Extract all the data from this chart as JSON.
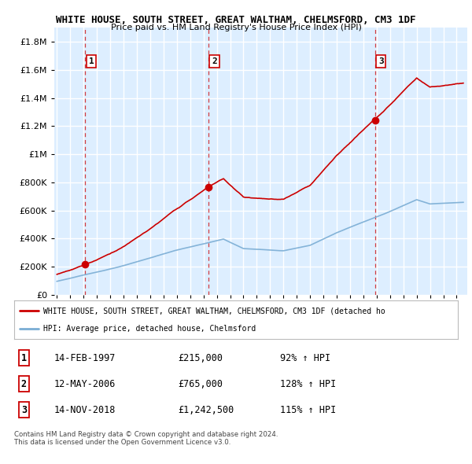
{
  "title": "WHITE HOUSE, SOUTH STREET, GREAT WALTHAM, CHELMSFORD, CM3 1DF",
  "subtitle": "Price paid vs. HM Land Registry's House Price Index (HPI)",
  "yticks": [
    0,
    200000,
    400000,
    600000,
    800000,
    1000000,
    1200000,
    1400000,
    1600000,
    1800000
  ],
  "ytick_labels": [
    "£0",
    "£200K",
    "£400K",
    "£600K",
    "£800K",
    "£1M",
    "£1.2M",
    "£1.4M",
    "£1.6M",
    "£1.8M"
  ],
  "xlim_start": 1994.8,
  "xlim_end": 2025.8,
  "ylim_bottom": 0,
  "ylim_top": 1900000,
  "sale_dates": [
    1997.12,
    2006.37,
    2018.87
  ],
  "sale_prices": [
    215000,
    765000,
    1242500
  ],
  "sale_labels": [
    "1",
    "2",
    "3"
  ],
  "legend_line1": "WHITE HOUSE, SOUTH STREET, GREAT WALTHAM, CHELMSFORD, CM3 1DF (detached ho",
  "legend_line2": "HPI: Average price, detached house, Chelmsford",
  "table_rows": [
    [
      "1",
      "14-FEB-1997",
      "£215,000",
      "92% ↑ HPI"
    ],
    [
      "2",
      "12-MAY-2006",
      "£765,000",
      "128% ↑ HPI"
    ],
    [
      "3",
      "14-NOV-2018",
      "£1,242,500",
      "115% ↑ HPI"
    ]
  ],
  "footnote1": "Contains HM Land Registry data © Crown copyright and database right 2024.",
  "footnote2": "This data is licensed under the Open Government Licence v3.0.",
  "red_color": "#cc0000",
  "blue_color": "#7aadd4",
  "plot_bg": "#ddeeff",
  "grid_color": "#ffffff"
}
